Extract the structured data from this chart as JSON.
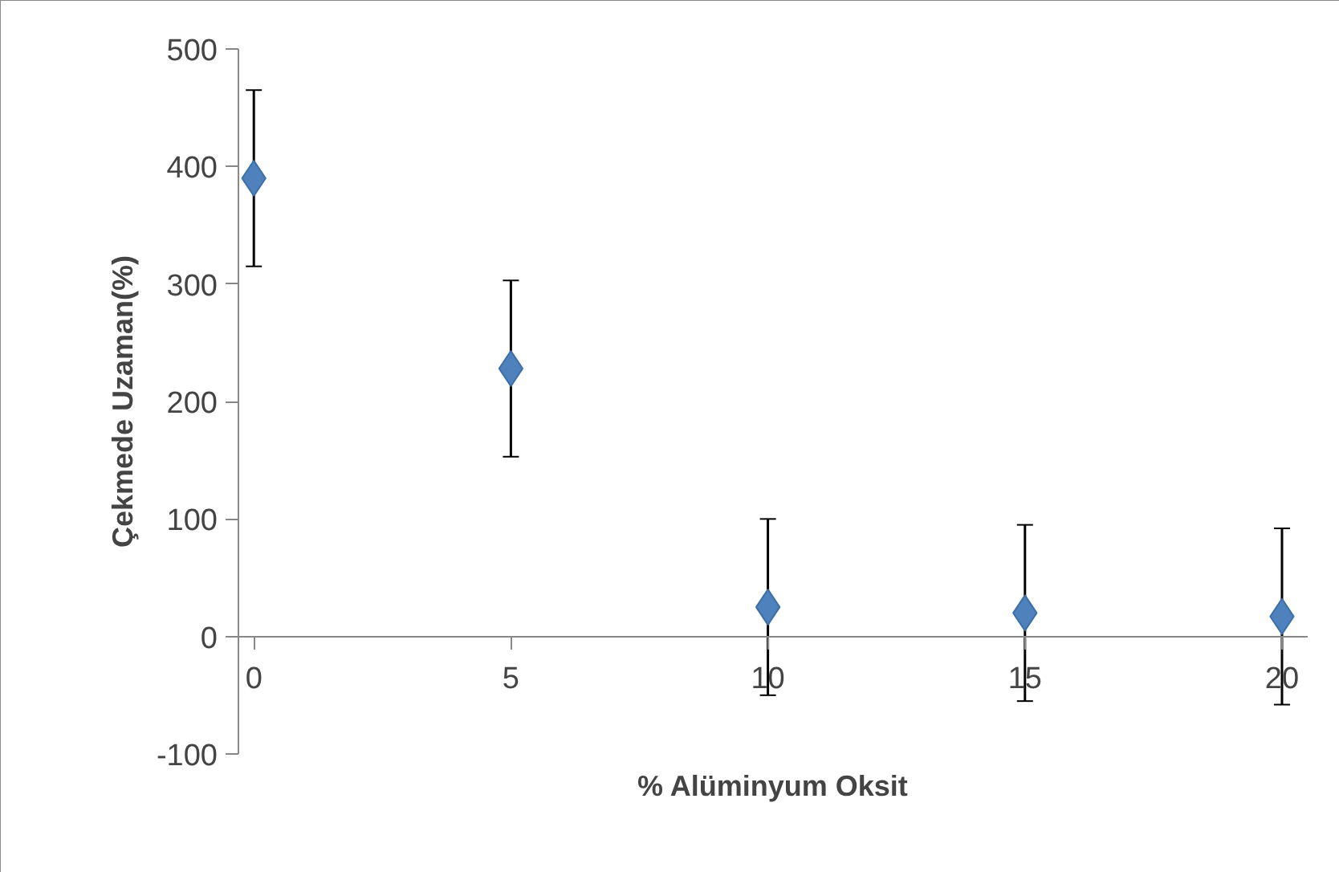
{
  "chart_data": {
    "type": "scatter",
    "xlabel": "% Alüminyum Oksit",
    "ylabel": "Çekmede Uzaman(%)",
    "x": [
      0,
      5,
      10,
      15,
      20
    ],
    "series": [
      {
        "color": "#4f81bd",
        "values": [
          390,
          228,
          25,
          20,
          17
        ],
        "errors": [
          75,
          75,
          75,
          75,
          75
        ]
      }
    ],
    "marker": "diamond",
    "xlim": [
      -0.3,
      20.5
    ],
    "ylim": [
      -100,
      500
    ],
    "xticks": [
      0,
      5,
      10,
      15,
      20
    ],
    "yticks": [
      -100,
      0,
      100,
      200,
      300,
      400,
      500
    ],
    "grid": false
  }
}
